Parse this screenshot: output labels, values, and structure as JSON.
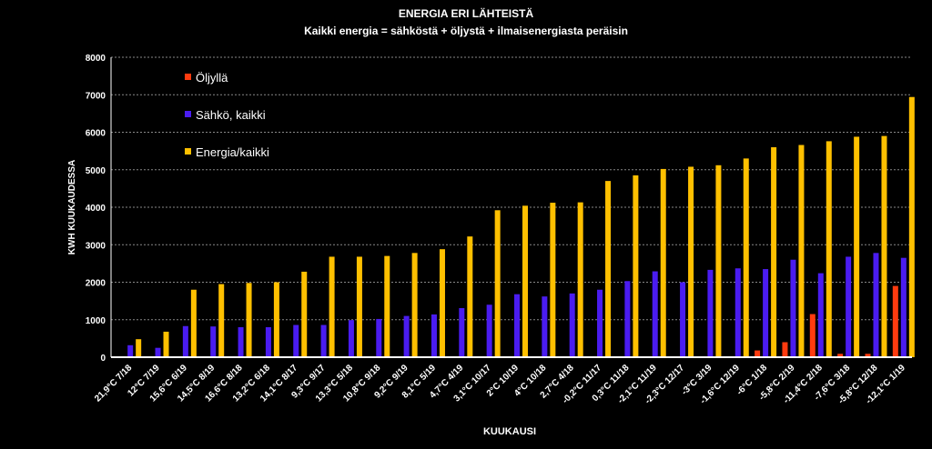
{
  "chart_data": {
    "type": "bar",
    "title": "ENERGIA ERI LÄHTEISTÄ",
    "subtitle": "Kaikki energia = sähköstä + öljystä + ilmaisenergiasta peräisin",
    "xlabel": "KUUKAUSI",
    "ylabel": "KWH KUUKAUDESSA",
    "ylim": [
      0,
      8000
    ],
    "yticks": [
      0,
      1000,
      2000,
      3000,
      4000,
      5000,
      6000,
      7000,
      8000
    ],
    "grid": true,
    "legend_position": "top-left",
    "categories": [
      "21,9°C 7/18",
      "12°C 7/19",
      "15,6°C 6/19",
      "14,5°C 8/19",
      "16,6°C 8/18",
      "13,2°C 6/18",
      "14,1°C 8/17",
      "9,3°C 9/17",
      "13,3°C 5/18",
      "10,8°C 9/18",
      "9,2°C 9/19",
      "8,1°C 5/19",
      "4,7°C 4/19",
      "3,1°C 10/17",
      "2°C 10/19",
      "4°C 10/18",
      "2,7°C 4/18",
      "-0,2°C 11/17",
      "0,3°C 11/18",
      "-2,1°C 11/19",
      "-2,3°C 12/17",
      "-3°C 3/19",
      "-1,6°C 12/19",
      "-6°C 1/18",
      "-5,8°C 2/19",
      "-11,4°C 2/18",
      "-7,6°C 3/18",
      "-5,8°C 12/18",
      "-12,1°C 1/19"
    ],
    "series": [
      {
        "name": "Öljyllä",
        "color": "#ff3b0f",
        "values": [
          0,
          0,
          0,
          0,
          0,
          0,
          0,
          0,
          0,
          10,
          0,
          0,
          0,
          0,
          0,
          0,
          0,
          0,
          0,
          0,
          0,
          0,
          0,
          180,
          400,
          1150,
          90,
          90,
          1900
        ]
      },
      {
        "name": "Sähkö, kaikki",
        "color": "#4a1cf0",
        "values": [
          320,
          250,
          830,
          820,
          800,
          800,
          860,
          860,
          990,
          1020,
          1100,
          1140,
          1310,
          1400,
          1680,
          1620,
          1700,
          1800,
          2030,
          2290,
          2000,
          2330,
          2370,
          2350,
          2600,
          2240,
          2680,
          2780,
          2650
        ]
      },
      {
        "name": "Energia/kaikki",
        "color": "#ffc000",
        "values": [
          480,
          680,
          1800,
          1950,
          1980,
          2000,
          2280,
          2680,
          2680,
          2700,
          2780,
          2880,
          3220,
          3920,
          4040,
          4120,
          4130,
          4700,
          4850,
          5020,
          5080,
          5120,
          5300,
          5600,
          5660,
          5760,
          5880,
          5900,
          6940
        ]
      }
    ]
  }
}
